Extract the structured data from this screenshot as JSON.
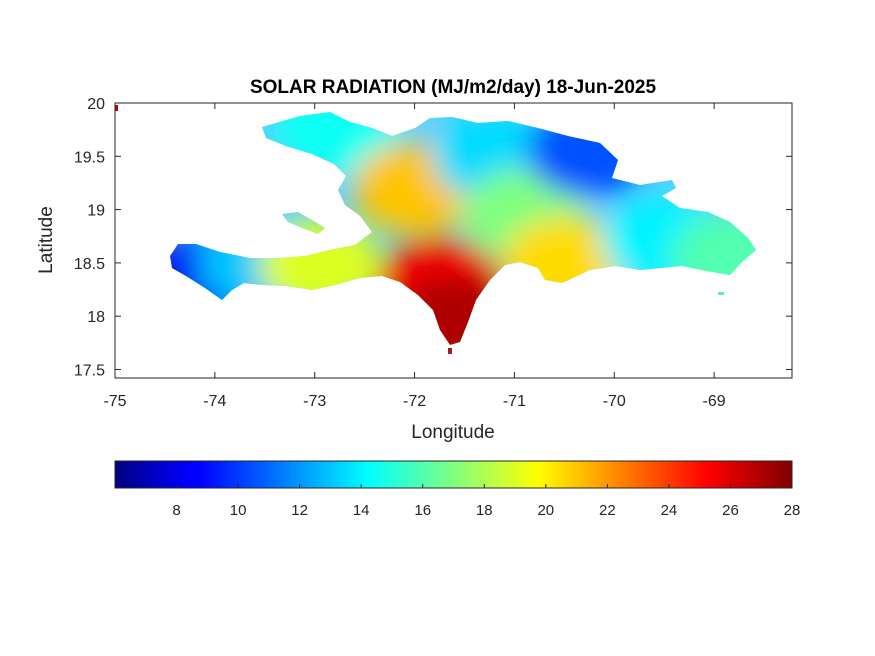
{
  "chart_data": {
    "type": "heatmap",
    "title": "SOLAR RADIATION (MJ/m2/day) 18-Jun-2025",
    "xlabel": "Longitude",
    "ylabel": "Latitude",
    "xlim": [
      -75,
      -68.22
    ],
    "ylim": [
      17.42,
      20
    ],
    "xticks": [
      -75,
      -74,
      -73,
      -72,
      -71,
      -70,
      -69
    ],
    "yticks": [
      17.5,
      18,
      18.5,
      19,
      19.5,
      20
    ],
    "xtick_labels": [
      "-75",
      "-74",
      "-73",
      "-72",
      "-71",
      "-70",
      "-69"
    ],
    "ytick_labels": [
      "17.5",
      "18",
      "18.5",
      "19",
      "19.5",
      "20"
    ],
    "colormap": "jet",
    "clim": [
      6,
      28
    ],
    "colorbar_location": "bottom",
    "colorbar_ticks": [
      8,
      10,
      12,
      14,
      16,
      18,
      20,
      22,
      24,
      26,
      28
    ],
    "colorbar_tick_labels": [
      "8",
      "10",
      "12",
      "14",
      "16",
      "18",
      "20",
      "22",
      "24",
      "26",
      "28"
    ],
    "regions": [
      {
        "lon": -74.05,
        "lat": 18.38,
        "value": 8.5
      },
      {
        "lon": -73.55,
        "lat": 18.5,
        "value": 13
      },
      {
        "lon": -72.95,
        "lat": 18.48,
        "value": 19
      },
      {
        "lon": -71.75,
        "lat": 18.3,
        "value": 25.5
      },
      {
        "lon": -71.6,
        "lat": 17.95,
        "value": 27
      },
      {
        "lon": -72.8,
        "lat": 19.75,
        "value": 14.5
      },
      {
        "lon": -72.0,
        "lat": 19.2,
        "value": 21
      },
      {
        "lon": -71.2,
        "lat": 19.5,
        "value": 13.5
      },
      {
        "lon": -70.9,
        "lat": 18.95,
        "value": 17
      },
      {
        "lon": -70.25,
        "lat": 19.55,
        "value": 10.5
      },
      {
        "lon": -70.5,
        "lat": 18.5,
        "value": 20.5
      },
      {
        "lon": -69.5,
        "lat": 18.7,
        "value": 14
      },
      {
        "lon": -68.8,
        "lat": 18.55,
        "value": 16
      }
    ]
  }
}
